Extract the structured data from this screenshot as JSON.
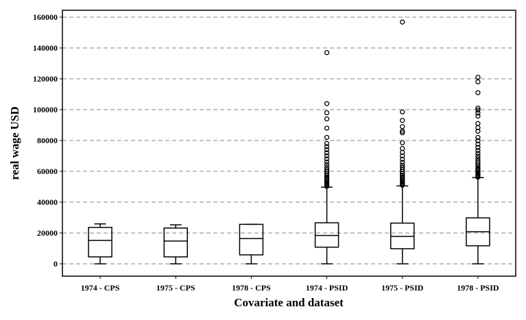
{
  "chart_data": {
    "type": "box",
    "xlabel": "Covariate and dataset",
    "ylabel": "real wage USD",
    "ylim": [
      -8000,
      164000
    ],
    "yticks": [
      0,
      20000,
      40000,
      60000,
      80000,
      100000,
      120000,
      140000,
      160000
    ],
    "ytick_labels": [
      "0",
      "20000",
      "40000",
      "60000",
      "80000",
      "100000",
      "120000",
      "140000",
      "160000"
    ],
    "grid": "horizontal dashed",
    "categories": [
      "1974 - CPS",
      "1975 - CPS",
      "1978 - CPS",
      "1974 - PSID",
      "1975 - PSID",
      "1978 - PSID"
    ],
    "boxes": [
      {
        "label": "1974 - CPS",
        "whisker_low": 0,
        "q1": 4500,
        "median": 15200,
        "q3": 23600,
        "whisker_high": 25900,
        "outliers": []
      },
      {
        "label": "1975 - CPS",
        "whisker_low": 0,
        "q1": 4500,
        "median": 14800,
        "q3": 23200,
        "whisker_high": 25300,
        "outliers": []
      },
      {
        "label": "1978 - CPS",
        "whisker_low": 0,
        "q1": 5800,
        "median": 16400,
        "q3": 25600,
        "whisker_high": 25600,
        "outliers": []
      },
      {
        "label": "1974 - PSID",
        "whisker_low": 0,
        "q1": 10800,
        "median": 18400,
        "q3": 26600,
        "whisker_high": 49700,
        "outliers": [
          50200,
          50800,
          51500,
          52200,
          52900,
          53600,
          54400,
          55300,
          56200,
          57300,
          58400,
          59600,
          61000,
          62500,
          64200,
          66000,
          68000,
          70000,
          72000,
          74000,
          76000,
          78000,
          82000,
          88000,
          94000,
          98000,
          103900,
          137000
        ]
      },
      {
        "label": "1975 - PSID",
        "whisker_low": 0,
        "q1": 9800,
        "median": 17800,
        "q3": 26400,
        "whisker_high": 50500,
        "outliers": [
          51000,
          51700,
          52400,
          53100,
          53900,
          54700,
          55600,
          56500,
          57500,
          58600,
          59800,
          61100,
          62500,
          64000,
          65800,
          67800,
          70000,
          72300,
          74800,
          78500,
          85000,
          86000,
          89000,
          93000,
          98500,
          156800
        ]
      },
      {
        "label": "1978 - PSID",
        "whisker_low": 0,
        "q1": 11700,
        "median": 20800,
        "q3": 29800,
        "whisker_high": 55900,
        "outliers": [
          56200,
          56800,
          57500,
          58200,
          58900,
          59600,
          60400,
          61200,
          62100,
          63100,
          64200,
          65400,
          66700,
          68200,
          69800,
          71600,
          73500,
          75500,
          77600,
          79800,
          82000,
          86000,
          88300,
          91000,
          95800,
          97800,
          99700,
          101000,
          111000,
          118000,
          121000
        ]
      }
    ]
  }
}
